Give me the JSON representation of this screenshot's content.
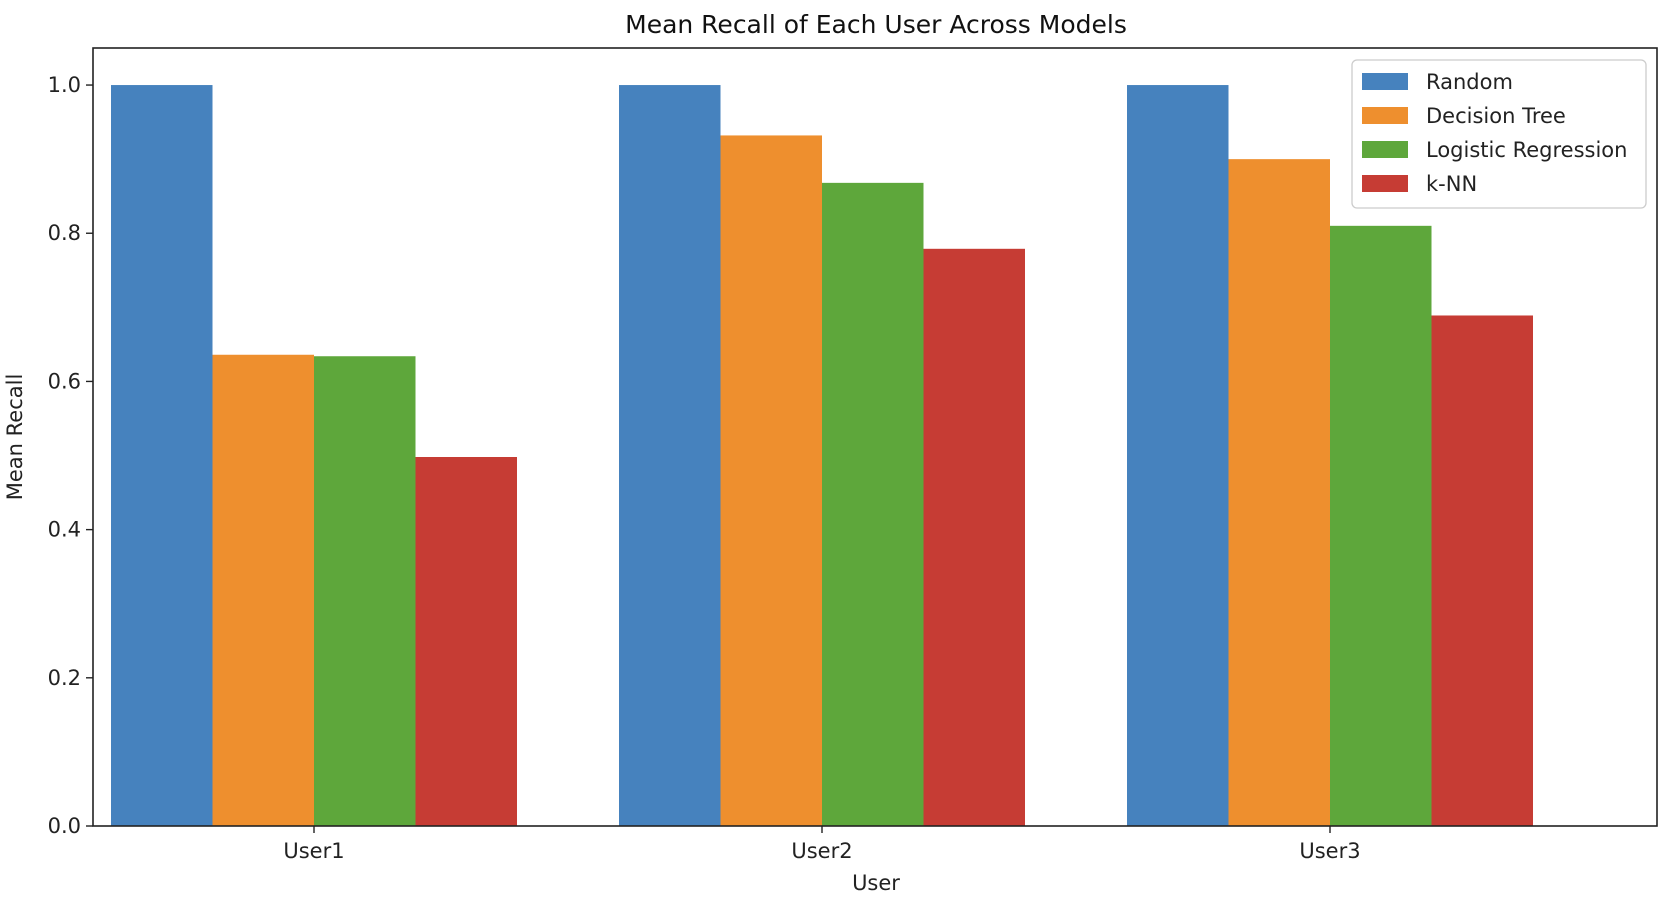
{
  "chart_data": {
    "type": "bar",
    "title": "Mean Recall of Each User Across Models",
    "xlabel": "User",
    "ylabel": "Mean Recall",
    "categories": [
      "User1",
      "User2",
      "User3"
    ],
    "ylim": [
      0,
      1.05
    ],
    "yticks": [
      "0.0",
      "0.2",
      "0.4",
      "0.6",
      "0.8",
      "1.0"
    ],
    "grid": false,
    "legend_position": "top-right",
    "series": [
      {
        "name": "Random",
        "color": "#4682be",
        "values": [
          1.0,
          1.0,
          1.0
        ]
      },
      {
        "name": "Decision Tree",
        "color": "#ee8f2e",
        "values": [
          0.636,
          0.932,
          0.9
        ]
      },
      {
        "name": "Logistic Regression",
        "color": "#5ea73b",
        "values": [
          0.634,
          0.868,
          0.81
        ]
      },
      {
        "name": "k-NN",
        "color": "#c63c34",
        "values": [
          0.498,
          0.779,
          0.689
        ]
      }
    ]
  }
}
